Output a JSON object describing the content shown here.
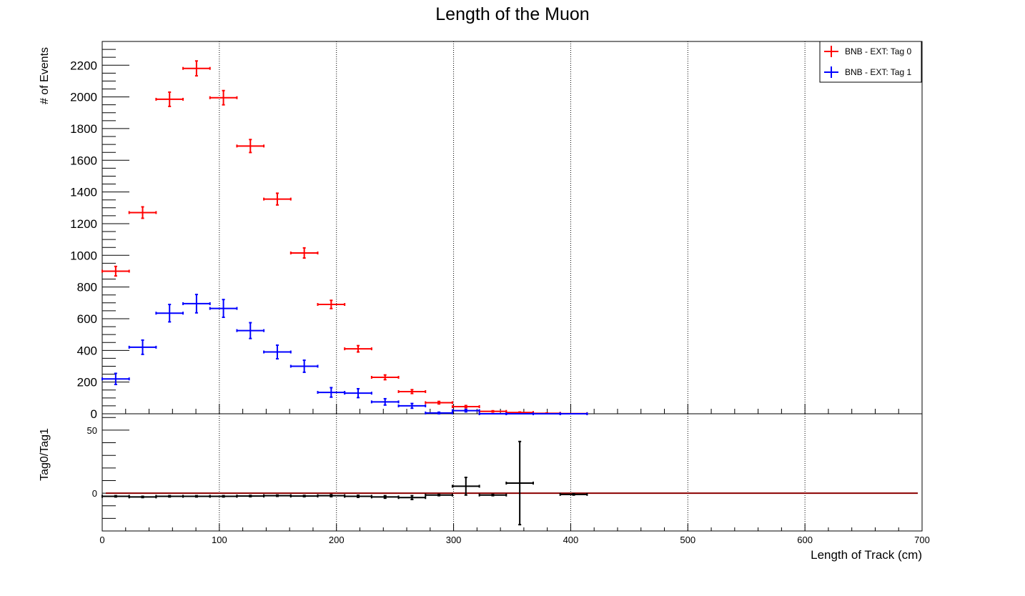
{
  "chart_data": {
    "type": "scatter",
    "title": "Length of the Muon",
    "xlabel": "Length of Track (cm)",
    "xlim": [
      0,
      700
    ],
    "x_ticks": [
      0,
      100,
      200,
      300,
      400,
      500,
      600,
      700
    ],
    "grid": true,
    "legend_position": "top-right",
    "top_panel": {
      "ylabel": "# of Events",
      "ylim": [
        0,
        2350
      ],
      "y_ticks": [
        0,
        200,
        400,
        600,
        800,
        1000,
        1200,
        1400,
        1600,
        1800,
        2000,
        2200
      ],
      "series": [
        {
          "name": "BNB - EXT: Tag 0",
          "color": "#ff0000",
          "x": [
            11.5,
            34.5,
            57.5,
            80.5,
            103.5,
            126.5,
            149.5,
            172.5,
            195.5,
            218.5,
            241.5,
            264.5,
            287.5,
            310.5,
            333.5,
            356.5,
            379.5,
            402.5
          ],
          "y": [
            900,
            1270,
            1985,
            2180,
            1995,
            1690,
            1355,
            1015,
            690,
            410,
            230,
            140,
            70,
            45,
            15,
            8,
            3,
            1
          ],
          "yerr": [
            30,
            36,
            45,
            47,
            45,
            41,
            37,
            32,
            26,
            20,
            15,
            12,
            8,
            7,
            4,
            3,
            2,
            1
          ]
        },
        {
          "name": "BNB - EXT: Tag 1",
          "color": "#0000ff",
          "x": [
            11.5,
            34.5,
            57.5,
            80.5,
            103.5,
            126.5,
            149.5,
            172.5,
            195.5,
            218.5,
            241.5,
            264.5,
            287.5,
            310.5,
            333.5,
            356.5,
            379.5,
            402.5
          ],
          "y": [
            220,
            420,
            635,
            695,
            665,
            525,
            390,
            300,
            135,
            130,
            75,
            50,
            5,
            20,
            0,
            0,
            0,
            0
          ],
          "yerr": [
            35,
            45,
            55,
            58,
            56,
            50,
            43,
            38,
            30,
            28,
            20,
            15,
            5,
            8,
            0,
            0,
            0,
            0
          ]
        }
      ]
    },
    "bottom_panel": {
      "ylabel": "Tag0/Tag1",
      "ylim": [
        -30,
        63
      ],
      "y_ticks": [
        0,
        50
      ],
      "ratio_series": {
        "color": "#000000",
        "x": [
          11.5,
          34.5,
          57.5,
          80.5,
          103.5,
          126.5,
          149.5,
          172.5,
          195.5,
          218.5,
          241.5,
          264.5,
          287.5,
          310.5,
          333.5,
          356.5,
          402.5
        ],
        "y": [
          -2.5,
          -3,
          -2.5,
          -2.5,
          -2.5,
          -2.3,
          -2,
          -2.3,
          -2,
          -2.5,
          -3,
          -3.5,
          -1.5,
          5.5,
          -1.5,
          8,
          -1
        ],
        "yerr": [
          0.5,
          0.5,
          0.5,
          0.5,
          0.5,
          0.5,
          0.5,
          0.5,
          0.8,
          0.8,
          1,
          1.5,
          0.5,
          7,
          0.5,
          33,
          0.5
        ]
      },
      "reference_line": {
        "y": 0,
        "color": "#8b0000"
      }
    }
  }
}
